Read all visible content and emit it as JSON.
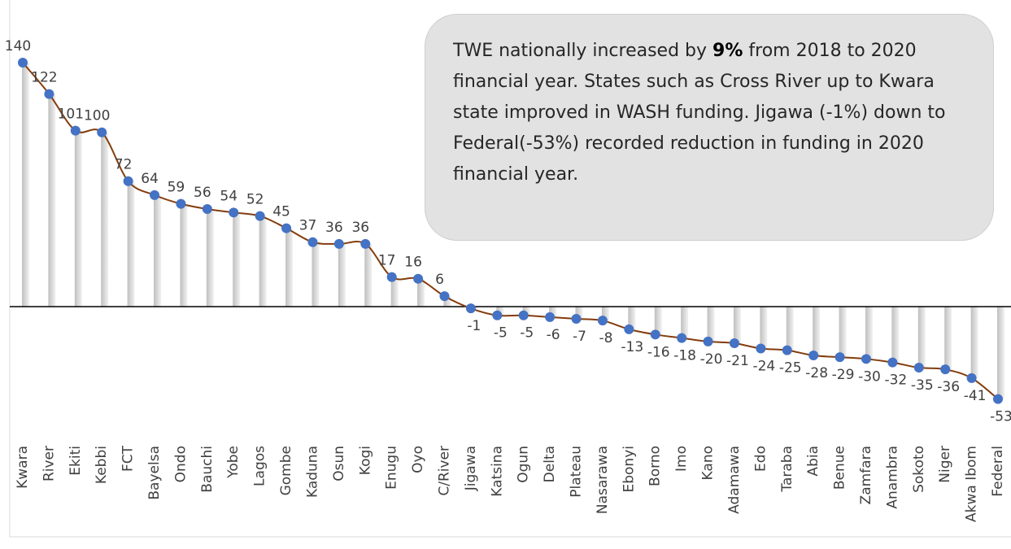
{
  "chart_data": {
    "type": "line",
    "categories": [
      "Kwara",
      "River",
      "Ekiti",
      "Kebbi",
      "FCT",
      "Bayelsa",
      "Ondo",
      "Bauchi",
      "Yobe",
      "Lagos",
      "Gombe",
      "Kaduna",
      "Osun",
      "Kogi",
      "Enugu",
      "Oyo",
      "C/River",
      "Jigawa",
      "Katsina",
      "Ogun",
      "Delta",
      "Plateau",
      "Nasarawa",
      "Ebonyi",
      "Borno",
      "Imo",
      "Kano",
      "Adamawa",
      "Edo",
      "Taraba",
      "Abia",
      "Benue",
      "Zamfara",
      "Anambra",
      "Sokoto",
      "Niger",
      "Akwa Ibom",
      "Federal"
    ],
    "values": [
      140,
      122,
      101,
      100,
      72,
      64,
      59,
      56,
      54,
      52,
      45,
      37,
      36,
      36,
      17,
      16,
      6,
      -1,
      -5,
      -5,
      -6,
      -7,
      -8,
      -13,
      -16,
      -18,
      -20,
      -21,
      -24,
      -25,
      -28,
      -29,
      -30,
      -32,
      -35,
      -36,
      -41,
      -53
    ],
    "line_color": "#843c0c",
    "marker_color": "#4472c4",
    "ylim": [
      -60,
      150
    ],
    "annotation": {
      "before": "TWE nationally increased by ",
      "highlight": "9%",
      "after": " from 2018 to 2020 financial year. States such as Cross River up to Kwara state improved in WASH funding. Jigawa (-1%) down to Federal(-53%) recorded reduction in funding in 2020 financial year."
    }
  }
}
